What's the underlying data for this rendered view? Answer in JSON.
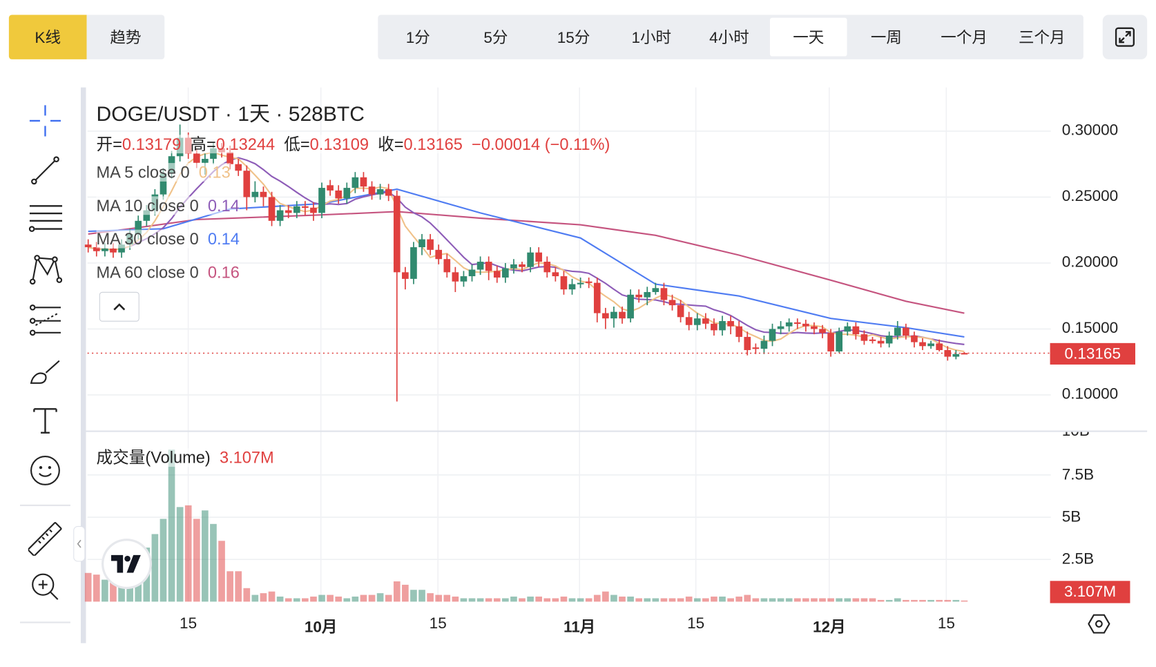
{
  "chart_type_tabs": [
    {
      "label": "K线",
      "active": true
    },
    {
      "label": "趋势",
      "active": false
    }
  ],
  "timeframes": [
    {
      "label": "1分"
    },
    {
      "label": "5分"
    },
    {
      "label": "15分"
    },
    {
      "label": "1小时"
    },
    {
      "label": "4小时"
    },
    {
      "label": "一天",
      "active": true
    },
    {
      "label": "一周"
    },
    {
      "label": "一个月"
    },
    {
      "label": "三个月"
    }
  ],
  "header": {
    "title": "DOGE/USDT · 1天 · 528BTC"
  },
  "ohlc": {
    "open_label": "开=",
    "open": "0.13179",
    "high_label": "高=",
    "high": "0.13244",
    "low_label": "低=",
    "low": "0.13109",
    "close_label": "收=",
    "close": "0.13165",
    "change": "−0.00014 (−0.11%)"
  },
  "ma_legend": [
    {
      "label": "MA 5 close 0",
      "value": "0.13",
      "color": "#f0c28a"
    },
    {
      "label": "MA 10 close 0",
      "value": "0.14",
      "color": "#8e5db8"
    },
    {
      "label": "MA 30 close 0",
      "value": "0.14",
      "color": "#4f7cf2"
    },
    {
      "label": "MA 60 close 0",
      "value": "0.16",
      "color": "#c5547f"
    }
  ],
  "volume_legend": {
    "label": "成交量(Volume)",
    "value": "3.107M"
  },
  "price_axis": [
    "0.30000",
    "0.25000",
    "0.20000",
    "0.15000",
    "0.10000"
  ],
  "current_price_label": "0.13165",
  "volume_axis": [
    "10B",
    "7.5B",
    "5B",
    "2.5B"
  ],
  "current_volume_label": "3.107M",
  "x_axis": [
    {
      "label": "15",
      "bold": false
    },
    {
      "label": "10月",
      "bold": true
    },
    {
      "label": "15",
      "bold": false
    },
    {
      "label": "11月",
      "bold": true
    },
    {
      "label": "15",
      "bold": false
    },
    {
      "label": "12月",
      "bold": true
    },
    {
      "label": "15",
      "bold": false
    }
  ],
  "colors": {
    "up": "#318a6f",
    "down": "#e0403f",
    "accent": "#f0c93c",
    "ma5": "#f0c28a",
    "ma10": "#8e5db8",
    "ma30": "#4f7cf2",
    "ma60": "#c5547f"
  },
  "left_toolbar": [
    "crosshair-icon",
    "trend-line-icon",
    "fib-retracement-icon",
    "pattern-icon",
    "prediction-icon",
    "brush-icon",
    "text-icon",
    "emoji-icon",
    "ruler-icon",
    "zoom-in-icon"
  ],
  "chart_data": {
    "type": "candlestick",
    "x_start": "09-03",
    "x_end": "12-17",
    "ylim": [
      0.08,
      0.32
    ],
    "candles_ohlc": [
      [
        0.214,
        0.218,
        0.208,
        0.212
      ],
      [
        0.212,
        0.216,
        0.205,
        0.209
      ],
      [
        0.209,
        0.215,
        0.205,
        0.211
      ],
      [
        0.211,
        0.215,
        0.204,
        0.208
      ],
      [
        0.208,
        0.218,
        0.204,
        0.214
      ],
      [
        0.214,
        0.226,
        0.21,
        0.222
      ],
      [
        0.222,
        0.236,
        0.218,
        0.232
      ],
      [
        0.232,
        0.244,
        0.228,
        0.24
      ],
      [
        0.24,
        0.256,
        0.236,
        0.252
      ],
      [
        0.252,
        0.272,
        0.248,
        0.268
      ],
      [
        0.268,
        0.285,
        0.264,
        0.281
      ],
      [
        0.281,
        0.305,
        0.277,
        0.295
      ],
      [
        0.295,
        0.299,
        0.279,
        0.283
      ],
      [
        0.283,
        0.287,
        0.272,
        0.276
      ],
      [
        0.276,
        0.283,
        0.267,
        0.279
      ],
      [
        0.279,
        0.291,
        0.275,
        0.287
      ],
      [
        0.287,
        0.291,
        0.28,
        0.284
      ],
      [
        0.284,
        0.289,
        0.271,
        0.275
      ],
      [
        0.275,
        0.279,
        0.266,
        0.27
      ],
      [
        0.27,
        0.274,
        0.24,
        0.25
      ],
      [
        0.25,
        0.262,
        0.246,
        0.254
      ],
      [
        0.254,
        0.258,
        0.243,
        0.25
      ],
      [
        0.25,
        0.254,
        0.228,
        0.232
      ],
      [
        0.232,
        0.244,
        0.228,
        0.24
      ],
      [
        0.24,
        0.244,
        0.234,
        0.238
      ],
      [
        0.238,
        0.247,
        0.234,
        0.243
      ],
      [
        0.243,
        0.247,
        0.236,
        0.242
      ],
      [
        0.242,
        0.246,
        0.232,
        0.238
      ],
      [
        0.238,
        0.261,
        0.234,
        0.257
      ],
      [
        0.259,
        0.263,
        0.251,
        0.255
      ],
      [
        0.255,
        0.259,
        0.245,
        0.249
      ],
      [
        0.249,
        0.261,
        0.245,
        0.257
      ],
      [
        0.257,
        0.269,
        0.253,
        0.265
      ],
      [
        0.265,
        0.269,
        0.254,
        0.258
      ],
      [
        0.258,
        0.262,
        0.248,
        0.252
      ],
      [
        0.252,
        0.26,
        0.248,
        0.256
      ],
      [
        0.256,
        0.26,
        0.247,
        0.251
      ],
      [
        0.251,
        0.255,
        0.095,
        0.193
      ],
      [
        0.193,
        0.197,
        0.18,
        0.188
      ],
      [
        0.188,
        0.216,
        0.184,
        0.212
      ],
      [
        0.212,
        0.222,
        0.206,
        0.218
      ],
      [
        0.218,
        0.222,
        0.206,
        0.21
      ],
      [
        0.21,
        0.214,
        0.199,
        0.203
      ],
      [
        0.203,
        0.207,
        0.189,
        0.193
      ],
      [
        0.193,
        0.197,
        0.178,
        0.186
      ],
      [
        0.186,
        0.194,
        0.182,
        0.19
      ],
      [
        0.19,
        0.199,
        0.186,
        0.195
      ],
      [
        0.195,
        0.205,
        0.191,
        0.201
      ],
      [
        0.201,
        0.205,
        0.187,
        0.194
      ],
      [
        0.194,
        0.198,
        0.185,
        0.189
      ],
      [
        0.189,
        0.2,
        0.185,
        0.196
      ],
      [
        0.196,
        0.203,
        0.192,
        0.199
      ],
      [
        0.199,
        0.201,
        0.193,
        0.197
      ],
      [
        0.197,
        0.212,
        0.193,
        0.208
      ],
      [
        0.208,
        0.212,
        0.197,
        0.201
      ],
      [
        0.201,
        0.205,
        0.189,
        0.193
      ],
      [
        0.193,
        0.197,
        0.186,
        0.19
      ],
      [
        0.19,
        0.194,
        0.176,
        0.18
      ],
      [
        0.18,
        0.188,
        0.176,
        0.184
      ],
      [
        0.184,
        0.189,
        0.181,
        0.185
      ],
      [
        0.186,
        0.189,
        0.181,
        0.185
      ],
      [
        0.185,
        0.189,
        0.155,
        0.162
      ],
      [
        0.162,
        0.166,
        0.15,
        0.158
      ],
      [
        0.158,
        0.167,
        0.151,
        0.163
      ],
      [
        0.163,
        0.167,
        0.154,
        0.158
      ],
      [
        0.158,
        0.18,
        0.155,
        0.176
      ],
      [
        0.176,
        0.18,
        0.17,
        0.174
      ],
      [
        0.174,
        0.182,
        0.168,
        0.178
      ],
      [
        0.178,
        0.185,
        0.176,
        0.181
      ],
      [
        0.181,
        0.185,
        0.168,
        0.172
      ],
      [
        0.172,
        0.176,
        0.164,
        0.168
      ],
      [
        0.168,
        0.172,
        0.155,
        0.159
      ],
      [
        0.159,
        0.163,
        0.149,
        0.153
      ],
      [
        0.153,
        0.162,
        0.149,
        0.158
      ],
      [
        0.158,
        0.162,
        0.15,
        0.154
      ],
      [
        0.154,
        0.158,
        0.145,
        0.149
      ],
      [
        0.149,
        0.16,
        0.145,
        0.156
      ],
      [
        0.156,
        0.16,
        0.146,
        0.152
      ],
      [
        0.152,
        0.156,
        0.14,
        0.144
      ],
      [
        0.144,
        0.148,
        0.13,
        0.134
      ],
      [
        0.136,
        0.139,
        0.131,
        0.135
      ],
      [
        0.135,
        0.145,
        0.131,
        0.141
      ],
      [
        0.141,
        0.154,
        0.137,
        0.15
      ],
      [
        0.15,
        0.156,
        0.146,
        0.152
      ],
      [
        0.152,
        0.158,
        0.148,
        0.155
      ],
      [
        0.155,
        0.158,
        0.15,
        0.154
      ],
      [
        0.154,
        0.157,
        0.148,
        0.152
      ],
      [
        0.152,
        0.155,
        0.146,
        0.15
      ],
      [
        0.15,
        0.153,
        0.143,
        0.147
      ],
      [
        0.147,
        0.15,
        0.129,
        0.133
      ],
      [
        0.133,
        0.151,
        0.132,
        0.148
      ],
      [
        0.148,
        0.155,
        0.145,
        0.152
      ],
      [
        0.152,
        0.155,
        0.142,
        0.146
      ],
      [
        0.146,
        0.149,
        0.138,
        0.141
      ],
      [
        0.142,
        0.144,
        0.139,
        0.141
      ],
      [
        0.141,
        0.144,
        0.136,
        0.139
      ],
      [
        0.139,
        0.148,
        0.136,
        0.145
      ],
      [
        0.145,
        0.156,
        0.142,
        0.151
      ],
      [
        0.151,
        0.154,
        0.142,
        0.145
      ],
      [
        0.145,
        0.148,
        0.136,
        0.14
      ],
      [
        0.14,
        0.143,
        0.134,
        0.137
      ],
      [
        0.137,
        0.141,
        0.135,
        0.139
      ],
      [
        0.139,
        0.142,
        0.133,
        0.134
      ],
      [
        0.134,
        0.137,
        0.126,
        0.129
      ],
      [
        0.129,
        0.134,
        0.127,
        0.131
      ],
      [
        0.13179,
        0.13244,
        0.13109,
        0.13165
      ]
    ],
    "volume_billions": [
      1.7,
      1.6,
      1.3,
      1.6,
      1.5,
      1.7,
      2.3,
      3.2,
      4.0,
      4.9,
      9.0,
      5.6,
      5.7,
      4.9,
      5.4,
      4.6,
      3.6,
      1.8,
      1.8,
      0.8,
      0.4,
      0.5,
      0.6,
      0.3,
      0.2,
      0.2,
      0.2,
      0.3,
      0.4,
      0.4,
      0.3,
      0.2,
      0.3,
      0.4,
      0.4,
      0.5,
      0.4,
      1.2,
      1.0,
      0.7,
      0.7,
      0.5,
      0.4,
      0.4,
      0.3,
      0.2,
      0.2,
      0.2,
      0.2,
      0.2,
      0.2,
      0.3,
      0.2,
      0.3,
      0.3,
      0.2,
      0.2,
      0.3,
      0.2,
      0.2,
      0.2,
      0.4,
      0.6,
      0.4,
      0.3,
      0.3,
      0.2,
      0.2,
      0.2,
      0.2,
      0.2,
      0.2,
      0.3,
      0.2,
      0.2,
      0.3,
      0.3,
      0.2,
      0.3,
      0.4,
      0.2,
      0.2,
      0.2,
      0.2,
      0.2,
      0.2,
      0.2,
      0.2,
      0.2,
      0.2,
      0.2,
      0.2,
      0.2,
      0.2,
      0.2,
      0.1,
      0.1,
      0.2,
      0.1,
      0.1,
      0.1,
      0.1,
      0.1,
      0.1,
      0.1,
      0.0031
    ],
    "ma30_points": [
      [
        "09-03",
        0.224
      ],
      [
        "09-12",
        0.226
      ],
      [
        "09-20",
        0.241
      ],
      [
        "10-01",
        0.245
      ],
      [
        "10-10",
        0.256
      ],
      [
        "10-20",
        0.238
      ],
      [
        "11-01",
        0.219
      ],
      [
        "11-10",
        0.184
      ],
      [
        "11-20",
        0.175
      ],
      [
        "12-01",
        0.158
      ],
      [
        "12-10",
        0.151
      ],
      [
        "12-17",
        0.144
      ]
    ],
    "ma60_points": [
      [
        "09-03",
        0.222
      ],
      [
        "09-08",
        0.226
      ],
      [
        "09-16",
        0.233
      ],
      [
        "10-01",
        0.2365
      ],
      [
        "10-10",
        0.239
      ],
      [
        "10-20",
        0.234
      ],
      [
        "11-01",
        0.229
      ],
      [
        "11-10",
        0.221
      ],
      [
        "11-20",
        0.206
      ],
      [
        "12-01",
        0.187
      ],
      [
        "12-10",
        0.171
      ],
      [
        "12-17",
        0.162
      ]
    ]
  }
}
